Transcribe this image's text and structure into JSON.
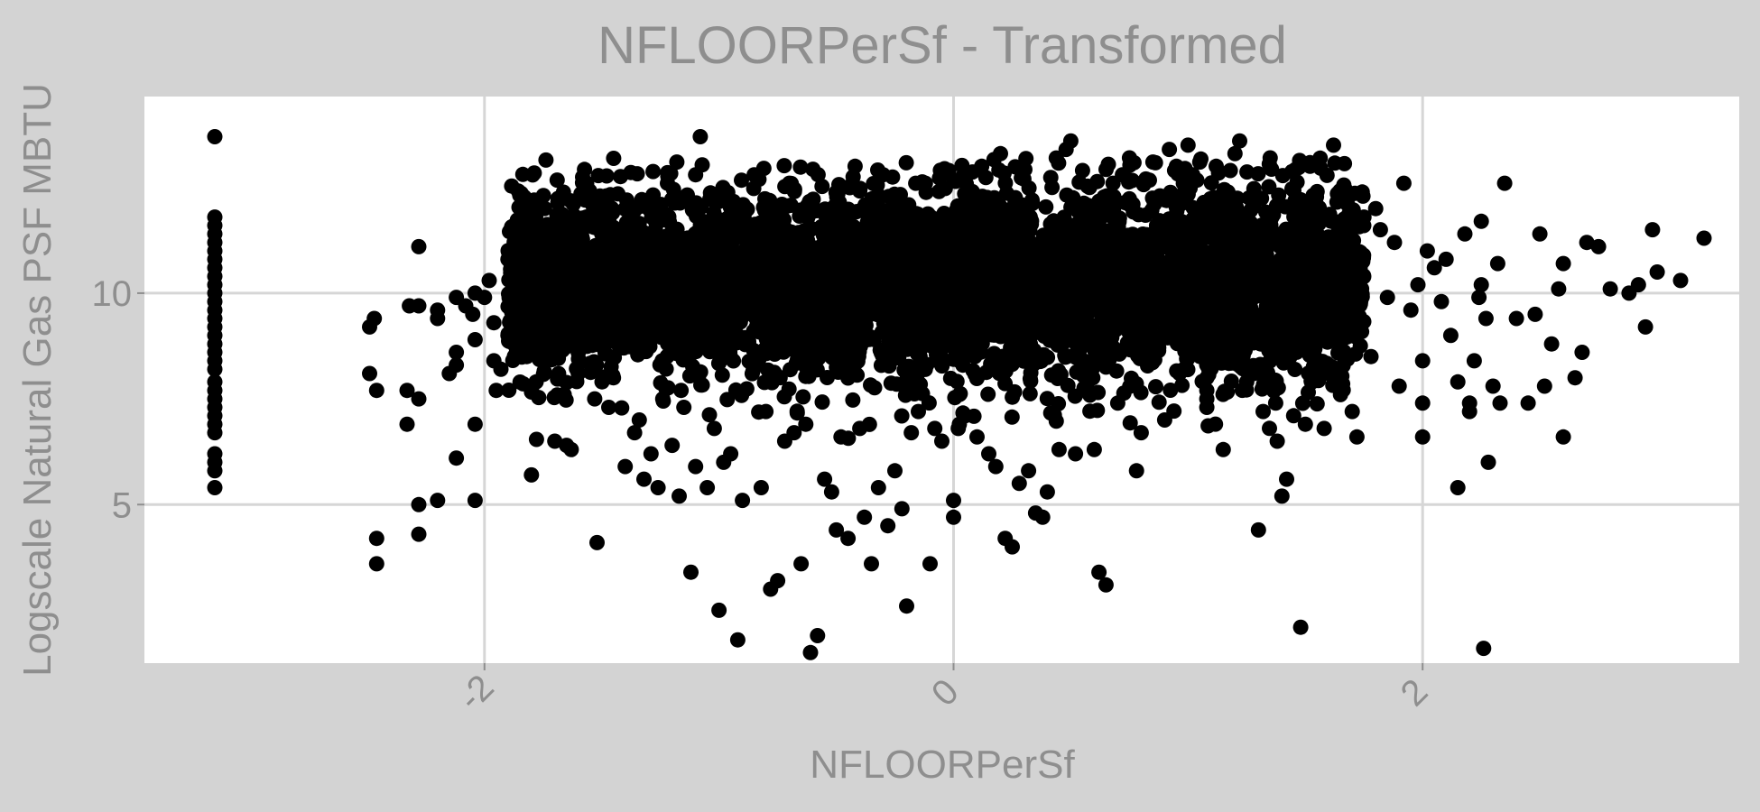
{
  "chart_data": {
    "type": "scatter",
    "title": "NFLOORPerSf - Transformed",
    "xlabel": "NFLOORPerSf",
    "ylabel": "Logscale Natural Gas PSF MBTU",
    "xlim": [
      -3.45,
      3.35
    ],
    "ylim": [
      1.25,
      14.65
    ],
    "x_ticks": [
      {
        "value": -2,
        "label": "-2"
      },
      {
        "value": 0,
        "label": "0"
      },
      {
        "value": 2,
        "label": "2"
      }
    ],
    "y_ticks": [
      {
        "value": 5,
        "label": "5"
      },
      {
        "value": 10,
        "label": "10"
      }
    ],
    "grid": true,
    "legend": "none",
    "colors": {
      "panel_background": "#ffffff",
      "plot_background": "#d3d3d3",
      "grid": "#d6d6d6",
      "point": "#000000",
      "text": "#8e8e8e"
    },
    "points": [
      [
        -3.15,
        13.7
      ],
      [
        -3.15,
        11.8
      ],
      [
        -3.15,
        11.6
      ],
      [
        -3.15,
        11.4
      ],
      [
        -3.15,
        11.2
      ],
      [
        -3.15,
        11.0
      ],
      [
        -3.15,
        10.8
      ],
      [
        -3.15,
        10.6
      ],
      [
        -3.15,
        10.4
      ],
      [
        -3.15,
        10.2
      ],
      [
        -3.15,
        10.0
      ],
      [
        -3.15,
        9.8
      ],
      [
        -3.15,
        9.6
      ],
      [
        -3.15,
        9.4
      ],
      [
        -3.15,
        9.2
      ],
      [
        -3.15,
        9.0
      ],
      [
        -3.15,
        8.8
      ],
      [
        -3.15,
        8.6
      ],
      [
        -3.15,
        8.4
      ],
      [
        -3.15,
        8.2
      ],
      [
        -3.15,
        7.9
      ],
      [
        -3.15,
        7.7
      ],
      [
        -3.15,
        7.5
      ],
      [
        -3.15,
        7.3
      ],
      [
        -3.15,
        7.1
      ],
      [
        -3.15,
        6.9
      ],
      [
        -3.15,
        6.7
      ],
      [
        -3.15,
        6.2
      ],
      [
        -3.15,
        6.0
      ],
      [
        -3.15,
        5.8
      ],
      [
        -3.15,
        5.4
      ],
      [
        -2.49,
        9.2
      ],
      [
        -2.47,
        9.4
      ],
      [
        -2.49,
        8.1
      ],
      [
        -2.46,
        7.7
      ],
      [
        -2.46,
        4.2
      ],
      [
        -2.46,
        3.6
      ],
      [
        -2.32,
        9.7
      ],
      [
        -2.33,
        7.7
      ],
      [
        -2.33,
        6.9
      ],
      [
        -2.28,
        11.1
      ],
      [
        -2.28,
        9.7
      ],
      [
        -2.28,
        7.5
      ],
      [
        -2.28,
        5.0
      ],
      [
        -2.28,
        4.3
      ],
      [
        -2.2,
        9.6
      ],
      [
        -2.2,
        9.4
      ],
      [
        -2.2,
        5.1
      ],
      [
        -2.15,
        8.1
      ],
      [
        -2.12,
        9.9
      ],
      [
        -2.12,
        8.6
      ],
      [
        -2.12,
        8.3
      ],
      [
        -2.12,
        6.1
      ],
      [
        -2.08,
        9.7
      ],
      [
        -2.05,
        9.5
      ],
      [
        -2.04,
        10.0
      ],
      [
        -2.04,
        8.9
      ],
      [
        -2.04,
        6.9
      ],
      [
        -2.04,
        5.1
      ],
      [
        -2.0,
        9.9
      ],
      [
        -1.98,
        10.3
      ],
      [
        -1.96,
        9.3
      ],
      [
        -1.96,
        8.4
      ],
      [
        -1.95,
        7.7
      ],
      [
        -1.93,
        8.2
      ],
      [
        -1.9,
        10.8
      ],
      [
        -1.9,
        9.0
      ],
      [
        -1.85,
        10.6
      ],
      [
        -1.85,
        9.2
      ],
      [
        -1.82,
        8.5
      ],
      [
        -1.8,
        5.7
      ],
      [
        -1.78,
        10.2
      ],
      [
        -1.78,
        7.9
      ],
      [
        -1.75,
        11.2
      ],
      [
        -1.72,
        9.8
      ],
      [
        -1.7,
        6.5
      ],
      [
        -1.68,
        10.9
      ],
      [
        -1.68,
        9.1
      ],
      [
        -1.66,
        7.6
      ],
      [
        -1.65,
        6.4
      ],
      [
        -1.63,
        6.3
      ],
      [
        -1.6,
        8.1
      ],
      [
        -1.58,
        11.7
      ],
      [
        -1.57,
        12.2
      ],
      [
        -1.55,
        8.8
      ],
      [
        -1.53,
        7.5
      ],
      [
        -1.52,
        4.1
      ],
      [
        -1.5,
        10.4
      ],
      [
        -1.5,
        11.4
      ],
      [
        -1.48,
        12.3
      ],
      [
        -1.47,
        7.3
      ],
      [
        -1.45,
        8.0
      ],
      [
        -1.42,
        11.0
      ],
      [
        -1.4,
        5.9
      ],
      [
        -1.37,
        9.3
      ],
      [
        -1.36,
        6.7
      ],
      [
        -1.34,
        7.0
      ],
      [
        -1.32,
        5.6
      ],
      [
        -1.3,
        12.0
      ],
      [
        -1.29,
        6.2
      ],
      [
        -1.26,
        5.4
      ],
      [
        -1.24,
        7.5
      ],
      [
        -1.22,
        12.6
      ],
      [
        -1.2,
        6.4
      ],
      [
        -1.18,
        13.1
      ],
      [
        -1.17,
        5.2
      ],
      [
        -1.15,
        7.3
      ],
      [
        -1.12,
        3.4
      ],
      [
        -1.1,
        5.9
      ],
      [
        -1.1,
        12.8
      ],
      [
        -1.08,
        13.7
      ],
      [
        -1.05,
        5.4
      ],
      [
        -1.02,
        6.8
      ],
      [
        -1.0,
        2.5
      ],
      [
        -0.98,
        6.0
      ],
      [
        -0.95,
        6.2
      ],
      [
        -0.92,
        1.8
      ],
      [
        -0.9,
        5.1
      ],
      [
        -0.85,
        12.8
      ],
      [
        -0.82,
        5.4
      ],
      [
        -0.8,
        7.2
      ],
      [
        -0.78,
        3.0
      ],
      [
        -0.75,
        3.2
      ],
      [
        -0.72,
        6.5
      ],
      [
        -0.7,
        12.6
      ],
      [
        -0.68,
        6.7
      ],
      [
        -0.65,
        3.6
      ],
      [
        -0.63,
        6.9
      ],
      [
        -0.61,
        1.5
      ],
      [
        -0.58,
        1.9
      ],
      [
        -0.55,
        5.6
      ],
      [
        -0.52,
        5.3
      ],
      [
        -0.5,
        4.4
      ],
      [
        -0.48,
        6.6
      ],
      [
        -0.45,
        4.2
      ],
      [
        -0.42,
        13.0
      ],
      [
        -0.4,
        6.8
      ],
      [
        -0.38,
        4.7
      ],
      [
        -0.35,
        3.6
      ],
      [
        -0.32,
        5.4
      ],
      [
        -0.3,
        12.8
      ],
      [
        -0.28,
        4.5
      ],
      [
        -0.25,
        5.8
      ],
      [
        -0.22,
        4.9
      ],
      [
        -0.2,
        2.6
      ],
      [
        -0.18,
        6.7
      ],
      [
        -0.15,
        7.2
      ],
      [
        -0.12,
        12.6
      ],
      [
        -0.1,
        3.6
      ],
      [
        -0.08,
        6.8
      ],
      [
        -0.05,
        6.5
      ],
      [
        -0.02,
        12.9
      ],
      [
        0.0,
        4.7
      ],
      [
        0.0,
        5.1
      ],
      [
        0.02,
        6.8
      ],
      [
        0.05,
        7.1
      ],
      [
        0.08,
        12.4
      ],
      [
        0.1,
        6.6
      ],
      [
        0.12,
        13.0
      ],
      [
        0.15,
        6.2
      ],
      [
        0.18,
        5.9
      ],
      [
        0.2,
        13.3
      ],
      [
        0.22,
        4.2
      ],
      [
        0.25,
        4.0
      ],
      [
        0.28,
        5.5
      ],
      [
        0.3,
        12.7
      ],
      [
        0.32,
        5.8
      ],
      [
        0.35,
        4.8
      ],
      [
        0.38,
        4.7
      ],
      [
        0.4,
        5.3
      ],
      [
        0.42,
        12.5
      ],
      [
        0.45,
        6.3
      ],
      [
        0.48,
        13.4
      ],
      [
        0.5,
        13.6
      ],
      [
        0.52,
        6.2
      ],
      [
        0.55,
        12.9
      ],
      [
        0.58,
        12.5
      ],
      [
        0.6,
        6.3
      ],
      [
        0.62,
        3.4
      ],
      [
        0.65,
        3.1
      ],
      [
        0.68,
        12.6
      ],
      [
        0.7,
        7.4
      ],
      [
        0.72,
        12.8
      ],
      [
        0.75,
        13.2
      ],
      [
        0.78,
        5.8
      ],
      [
        0.8,
        6.7
      ],
      [
        0.82,
        12.7
      ],
      [
        0.85,
        13.1
      ],
      [
        0.88,
        12.3
      ],
      [
        0.9,
        7.0
      ],
      [
        0.92,
        13.4
      ],
      [
        0.95,
        13.0
      ],
      [
        0.98,
        12.6
      ],
      [
        1.0,
        13.5
      ],
      [
        1.02,
        12.8
      ],
      [
        1.05,
        13.1
      ],
      [
        1.08,
        7.3
      ],
      [
        1.08,
        7.5
      ],
      [
        1.08,
        7.7
      ],
      [
        1.08,
        8.0
      ],
      [
        1.08,
        8.3
      ],
      [
        1.08,
        8.6
      ],
      [
        1.08,
        8.9
      ],
      [
        1.08,
        9.2
      ],
      [
        1.12,
        13.0
      ],
      [
        1.15,
        6.3
      ],
      [
        1.18,
        12.9
      ],
      [
        1.2,
        13.3
      ],
      [
        1.22,
        13.6
      ],
      [
        1.25,
        7.9
      ],
      [
        1.28,
        8.1
      ],
      [
        1.3,
        4.4
      ],
      [
        1.32,
        7.2
      ],
      [
        1.35,
        13.2
      ],
      [
        1.38,
        6.5
      ],
      [
        1.4,
        5.2
      ],
      [
        1.42,
        5.6
      ],
      [
        1.45,
        7.1
      ],
      [
        1.48,
        2.1
      ],
      [
        1.5,
        6.9
      ],
      [
        1.52,
        13.0
      ],
      [
        1.55,
        12.4
      ],
      [
        1.58,
        6.8
      ],
      [
        1.6,
        8.1
      ],
      [
        1.62,
        13.5
      ],
      [
        1.65,
        7.6
      ],
      [
        1.68,
        12.1
      ],
      [
        1.7,
        7.2
      ],
      [
        1.72,
        6.6
      ],
      [
        1.75,
        11.8
      ],
      [
        1.78,
        8.5
      ],
      [
        1.8,
        12.0
      ],
      [
        1.82,
        11.5
      ],
      [
        1.85,
        9.9
      ],
      [
        1.88,
        11.2
      ],
      [
        1.9,
        7.8
      ],
      [
        1.92,
        12.6
      ],
      [
        1.95,
        9.6
      ],
      [
        1.98,
        10.2
      ],
      [
        2.0,
        8.4
      ],
      [
        2.0,
        7.4
      ],
      [
        2.0,
        6.6
      ],
      [
        2.02,
        11.0
      ],
      [
        2.05,
        10.6
      ],
      [
        2.08,
        9.8
      ],
      [
        2.1,
        10.8
      ],
      [
        2.12,
        9.0
      ],
      [
        2.15,
        7.9
      ],
      [
        2.15,
        5.4
      ],
      [
        2.18,
        11.4
      ],
      [
        2.2,
        7.4
      ],
      [
        2.2,
        7.2
      ],
      [
        2.22,
        8.4
      ],
      [
        2.24,
        9.9
      ],
      [
        2.25,
        11.7
      ],
      [
        2.25,
        10.2
      ],
      [
        2.26,
        1.6
      ],
      [
        2.27,
        9.4
      ],
      [
        2.28,
        6.0
      ],
      [
        2.3,
        7.8
      ],
      [
        2.32,
        10.7
      ],
      [
        2.33,
        7.4
      ],
      [
        2.35,
        12.6
      ],
      [
        2.4,
        9.4
      ],
      [
        2.45,
        7.4
      ],
      [
        2.48,
        9.5
      ],
      [
        2.5,
        11.4
      ],
      [
        2.52,
        7.8
      ],
      [
        2.55,
        8.8
      ],
      [
        2.58,
        10.1
      ],
      [
        2.6,
        10.7
      ],
      [
        2.6,
        6.6
      ],
      [
        2.65,
        8.0
      ],
      [
        2.68,
        8.6
      ],
      [
        2.7,
        11.2
      ],
      [
        2.75,
        11.1
      ],
      [
        2.8,
        10.1
      ],
      [
        2.88,
        10.0
      ],
      [
        2.92,
        10.2
      ],
      [
        2.95,
        9.2
      ],
      [
        2.98,
        11.5
      ],
      [
        3.0,
        10.5
      ],
      [
        3.1,
        10.3
      ],
      [
        3.2,
        11.3
      ]
    ],
    "dense_band": {
      "x_range": [
        -1.9,
        1.75
      ],
      "y_center": 10.2,
      "y_spread": 1.1,
      "count": 5200
    }
  }
}
